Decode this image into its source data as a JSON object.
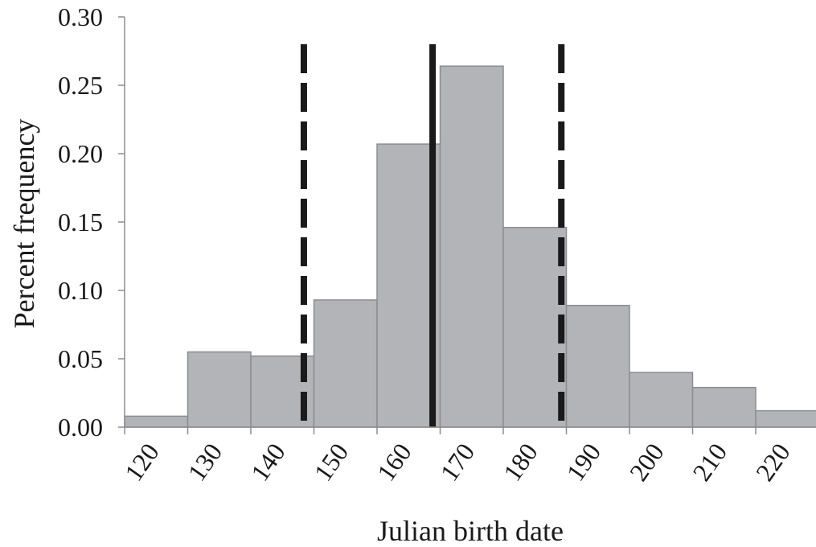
{
  "chart_data": {
    "type": "bar",
    "title": "",
    "xlabel": "Julian birth date",
    "ylabel": "Percent frequency",
    "bin_edges": [
      120,
      130,
      140,
      150,
      160,
      170,
      180,
      190,
      200,
      210,
      220,
      230
    ],
    "values": [
      0.008,
      0.055,
      0.052,
      0.093,
      0.207,
      0.264,
      0.146,
      0.089,
      0.04,
      0.029,
      0.012
    ],
    "x_ticks": [
      "120",
      "130",
      "140",
      "150",
      "160",
      "170",
      "180",
      "190",
      "200",
      "210",
      "220"
    ],
    "y_ticks": [
      "0.00",
      "0.05",
      "0.10",
      "0.15",
      "0.20",
      "0.25",
      "0.30"
    ],
    "ylim": [
      0,
      0.3
    ],
    "grid": false,
    "reference_lines": [
      {
        "style": "dashed",
        "x": 148.4
      },
      {
        "style": "solid",
        "x": 168.8
      },
      {
        "style": "dashed",
        "x": 189.2
      }
    ],
    "colors": {
      "bar_fill": "#b3b4b7",
      "bar_stroke": "#8c8d90",
      "axis": "#8c8d90",
      "line": "#1a1a1a"
    }
  }
}
